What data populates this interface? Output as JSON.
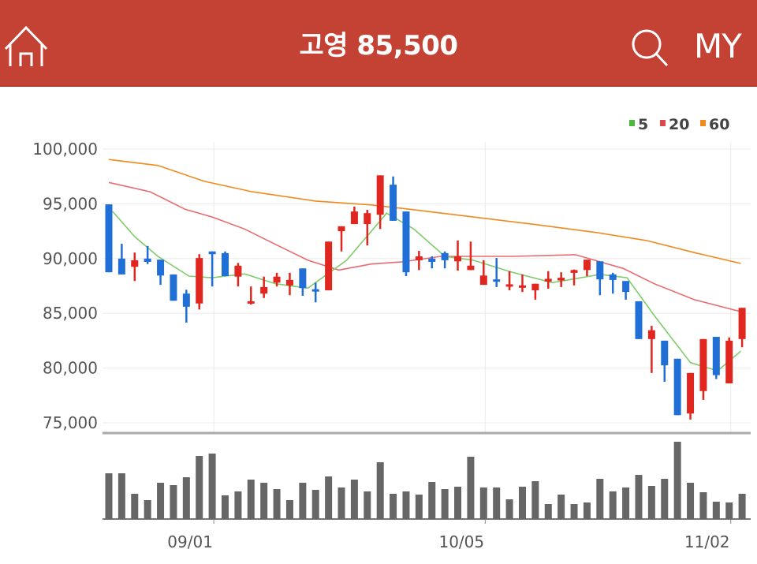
{
  "header": {
    "title": "고영 85,500",
    "home_icon": "home-icon",
    "search_icon": "search-icon",
    "my_label": "MY",
    "background_color": "#c44234"
  },
  "chart_data": {
    "type": "candlestick",
    "title": "",
    "y_ticks": [
      "100,000",
      "95,000",
      "90,000",
      "85,000",
      "80,000",
      "75,000"
    ],
    "y_tick_values": [
      100000,
      95000,
      90000,
      85000,
      80000,
      75000
    ],
    "ylim": [
      75000,
      100000
    ],
    "x_ticks": [
      {
        "label": "09/01",
        "index": 8
      },
      {
        "label": "10/05",
        "index": 29
      },
      {
        "label": "11/02",
        "index": 48
      }
    ],
    "grid": true,
    "legend_position": "top-right",
    "legend": [
      {
        "label": "5",
        "color": "#4cb83c"
      },
      {
        "label": "20",
        "color": "#e0474c"
      },
      {
        "label": "60",
        "color": "#f08a1c"
      }
    ],
    "up_color": "#e0261f",
    "down_color": "#1f6fd6",
    "candles_ohlc": [
      [
        94950,
        94950,
        88750,
        88750
      ],
      [
        90000,
        91350,
        88550,
        88550
      ],
      [
        89250,
        90550,
        87950,
        89850
      ],
      [
        90000,
        91150,
        89500,
        89700
      ],
      [
        89900,
        89900,
        87600,
        88450
      ],
      [
        88550,
        88550,
        86150,
        86150
      ],
      [
        86800,
        87150,
        84150,
        85600
      ],
      [
        85900,
        90400,
        85350,
        90050
      ],
      [
        90650,
        90650,
        87450,
        90400
      ],
      [
        90500,
        90650,
        88400,
        88400
      ],
      [
        88350,
        89600,
        87450,
        89350
      ],
      [
        85900,
        87450,
        85800,
        86100
      ],
      [
        86800,
        88350,
        86400,
        87400
      ],
      [
        87800,
        88700,
        87450,
        88350
      ],
      [
        87550,
        88700,
        86650,
        88050
      ],
      [
        89100,
        89100,
        86600,
        87300
      ],
      [
        87200,
        87800,
        86000,
        87100
      ],
      [
        87100,
        91550,
        87100,
        91550
      ],
      [
        92500,
        92950,
        90650,
        92950
      ],
      [
        93150,
        94750,
        93150,
        94300
      ],
      [
        93150,
        94450,
        91200,
        94150
      ],
      [
        94000,
        97600,
        92700,
        97600
      ],
      [
        96750,
        97500,
        93450,
        93450
      ],
      [
        94300,
        94300,
        88400,
        88750
      ],
      [
        89850,
        90700,
        88950,
        90200
      ],
      [
        90000,
        90200,
        89100,
        89700
      ],
      [
        90500,
        90650,
        89100,
        89850
      ],
      [
        89750,
        91650,
        88900,
        90200
      ],
      [
        88950,
        91550,
        88950,
        89350
      ],
      [
        87600,
        89850,
        87600,
        88450
      ],
      [
        88100,
        90050,
        87400,
        87950
      ],
      [
        87500,
        88850,
        87100,
        87650
      ],
      [
        87400,
        88550,
        86950,
        87550
      ],
      [
        87100,
        87700,
        86250,
        87700
      ],
      [
        87900,
        88850,
        87250,
        88150
      ],
      [
        88000,
        88750,
        87400,
        88250
      ],
      [
        88700,
        89000,
        87550,
        88950
      ],
      [
        88950,
        89900,
        88400,
        89900
      ],
      [
        89750,
        89750,
        86650,
        88100
      ],
      [
        88550,
        88700,
        86800,
        88050
      ],
      [
        87950,
        87950,
        86250,
        86950
      ],
      [
        86100,
        86100,
        82650,
        82650
      ],
      [
        82650,
        83850,
        79550,
        83450
      ],
      [
        82500,
        82500,
        78750,
        80250
      ],
      [
        80850,
        80850,
        75700,
        75700
      ],
      [
        75850,
        79550,
        75300,
        79550
      ],
      [
        77900,
        82650,
        77100,
        82650
      ],
      [
        82850,
        82850,
        79000,
        79350
      ],
      [
        78600,
        82800,
        78600,
        82500
      ],
      [
        82650,
        85500,
        81900,
        85500
      ]
    ],
    "ma5": [
      [
        0.3,
        94300
      ],
      [
        2,
        92000
      ],
      [
        3.8,
        90200
      ],
      [
        6.2,
        88400
      ],
      [
        8,
        88250
      ],
      [
        10.5,
        88600
      ],
      [
        12.9,
        87700
      ],
      [
        15.4,
        87300
      ],
      [
        18.4,
        89850
      ],
      [
        21.5,
        94150
      ],
      [
        23.6,
        92700
      ],
      [
        26,
        90200
      ],
      [
        28.2,
        89850
      ],
      [
        31.2,
        88750
      ],
      [
        34.3,
        87800
      ],
      [
        38,
        88550
      ],
      [
        40.1,
        88250
      ],
      [
        42.2,
        84800
      ],
      [
        45,
        80500
      ],
      [
        47.1,
        79750
      ],
      [
        48.9,
        81550
      ]
    ],
    "ma20": [
      [
        0,
        96950
      ],
      [
        3.2,
        96100
      ],
      [
        5.9,
        94500
      ],
      [
        8,
        93800
      ],
      [
        10.5,
        92700
      ],
      [
        12.9,
        91300
      ],
      [
        15.4,
        89850
      ],
      [
        17.8,
        88950
      ],
      [
        20.3,
        89500
      ],
      [
        22.7,
        89700
      ],
      [
        25.7,
        90200
      ],
      [
        31.2,
        90200
      ],
      [
        36.1,
        90350
      ],
      [
        39.8,
        89100
      ],
      [
        42.2,
        87700
      ],
      [
        45.3,
        86250
      ],
      [
        48.9,
        85150
      ]
    ],
    "ma60": [
      [
        0,
        99050
      ],
      [
        3.8,
        98500
      ],
      [
        7.4,
        97050
      ],
      [
        11.1,
        96100
      ],
      [
        16,
        95250
      ],
      [
        20.3,
        94900
      ],
      [
        23.3,
        94500
      ],
      [
        28.2,
        93800
      ],
      [
        33.1,
        93100
      ],
      [
        37.9,
        92350
      ],
      [
        41.6,
        91650
      ],
      [
        45.3,
        90550
      ],
      [
        48.9,
        89550
      ]
    ],
    "volume_relative": [
      58,
      58,
      32,
      24,
      46,
      43,
      53,
      80,
      83,
      30,
      35,
      50,
      46,
      38,
      24,
      46,
      37,
      54,
      40,
      50,
      35,
      72,
      32,
      35,
      31,
      47,
      38,
      41,
      79,
      40,
      40,
      25,
      41,
      48,
      19,
      31,
      19,
      21,
      51,
      35,
      40,
      56,
      42,
      51,
      98,
      46,
      34,
      22,
      21,
      32
    ],
    "volume_color": "#666666"
  }
}
